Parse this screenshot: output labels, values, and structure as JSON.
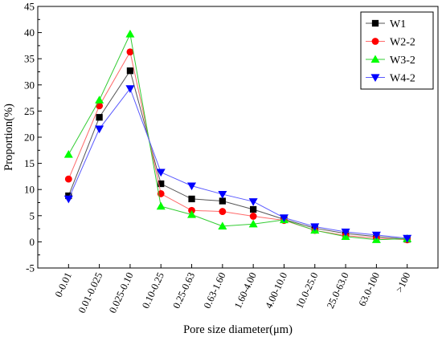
{
  "chart_data": {
    "type": "line",
    "xlabel": "Pore size diameter(μm)",
    "ylabel": "Proportion(%)",
    "ylim": [
      -5,
      45
    ],
    "yticks": [
      -5,
      0,
      5,
      10,
      15,
      20,
      25,
      30,
      35,
      40,
      45
    ],
    "grid": false,
    "legend_position": "top-right",
    "categories": [
      "0-0.01",
      "0.01-0.025",
      "0.025-0.10",
      "0.10-0.25",
      "0.25-0.63",
      "0.63-1.60",
      "1.60-4.00",
      "4.00-10.0",
      "10.0-25.0",
      "25.0-63.0",
      "63.0-100",
      ">100"
    ],
    "series": [
      {
        "name": "W1",
        "color": "#000000",
        "line_color": "#555555",
        "marker": "square",
        "values": [
          8.8,
          23.8,
          32.7,
          11.1,
          8.2,
          7.8,
          6.2,
          4.3,
          2.6,
          1.6,
          1.0,
          0.5
        ]
      },
      {
        "name": "W2-2",
        "color": "#ff0000",
        "line_color": "#ff6a6a",
        "marker": "circle",
        "values": [
          12.0,
          26.0,
          36.3,
          9.2,
          6.0,
          5.8,
          4.9,
          4.1,
          2.2,
          1.2,
          0.7,
          0.4
        ]
      },
      {
        "name": "W3-2",
        "color": "#00ff00",
        "line_color": "#33cc33",
        "marker": "triangle-up",
        "values": [
          16.7,
          27.1,
          39.7,
          6.8,
          5.2,
          3.0,
          3.4,
          4.2,
          2.2,
          1.0,
          0.4,
          0.6
        ]
      },
      {
        "name": "W4-2",
        "color": "#0000ff",
        "line_color": "#5a5aff",
        "marker": "triangle-down",
        "values": [
          8.2,
          21.6,
          29.3,
          13.3,
          10.7,
          9.1,
          7.7,
          4.6,
          2.9,
          1.9,
          1.3,
          0.7
        ]
      }
    ]
  }
}
